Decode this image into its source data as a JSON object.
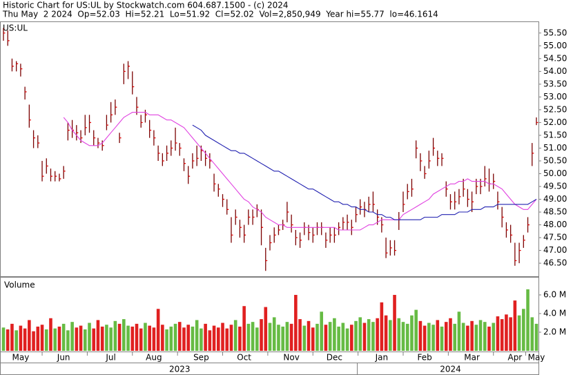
{
  "chart_data": {
    "type": "ohlc",
    "title": "Historic Chart for US:UL by Stockwatch.com 604.687.1500 - (c) 2024",
    "subtitle": "Thu May  2 2024  Op=52.03  Hi=52.21  Lo=51.92  Cl=52.02  Vol=2,850,949  Year hi=55.77  lo=46.1614",
    "symbol": "US:UL",
    "categories": [
      null,
      null,
      null,
      null,
      "May",
      null,
      null,
      null,
      null,
      null,
      null,
      null,
      null,
      null,
      "Jun",
      null,
      null,
      null,
      null,
      null,
      null,
      null,
      null,
      null,
      null,
      "Jul",
      null,
      null,
      null,
      null,
      null,
      null,
      null,
      null,
      null,
      "Aug",
      null,
      null,
      null,
      null,
      null,
      null,
      null,
      null,
      null,
      null,
      "Sep",
      null,
      null,
      null,
      null,
      null,
      null,
      null,
      null,
      null,
      "Oct",
      null,
      null,
      null,
      null,
      null,
      null,
      null,
      null,
      null,
      null,
      "Nov",
      null,
      null,
      null,
      null,
      null,
      null,
      null,
      null,
      null,
      "Dec",
      null,
      null,
      null,
      null,
      null,
      null,
      null,
      null,
      null,
      null,
      "Jan",
      null,
      null,
      null,
      null,
      null,
      null,
      null,
      null,
      null,
      "Feb",
      null,
      null,
      null,
      null,
      null,
      null,
      null,
      null,
      null,
      null,
      "Mar",
      null,
      null,
      null,
      null,
      null,
      null,
      null,
      null,
      null,
      "Apr",
      null,
      null,
      null,
      null,
      "May"
    ],
    "year_labels": [
      null,
      null,
      null,
      null,
      null,
      null,
      null,
      null,
      null,
      null,
      null,
      null,
      null,
      null,
      null,
      null,
      null,
      null,
      null,
      null,
      null,
      null,
      null,
      null,
      null,
      null,
      null,
      null,
      null,
      null,
      null,
      null,
      null,
      null,
      null,
      null,
      null,
      null,
      null,
      null,
      null,
      "2023",
      null,
      null,
      null,
      null,
      null,
      null,
      null,
      null,
      null,
      null,
      null,
      null,
      null,
      null,
      null,
      null,
      null,
      null,
      null,
      null,
      null,
      null,
      null,
      null,
      null,
      null,
      null,
      null,
      null,
      null,
      null,
      null,
      null,
      null,
      null,
      null,
      null,
      null,
      null,
      null,
      null,
      null,
      null,
      null,
      null,
      null,
      null,
      null,
      null,
      null,
      null,
      null,
      null,
      null,
      null,
      null,
      null,
      null,
      null,
      null,
      null,
      null,
      "2024",
      null,
      null,
      null,
      null,
      null,
      null,
      null,
      null,
      null,
      null,
      null,
      null,
      null,
      null,
      null,
      null,
      null,
      null,
      null,
      null
    ],
    "high": [
      55.7,
      55.6,
      54.5,
      54.4,
      54.3,
      53.4,
      52.7,
      51.7,
      51.5,
      50.5,
      50.6,
      50.2,
      50.1,
      50.0,
      50.3,
      52.0,
      52.1,
      51.9,
      51.7,
      52.3,
      52.3,
      51.7,
      51.4,
      51.3,
      52.3,
      52.8,
      52.9,
      51.6,
      54.3,
      54.4,
      54.0,
      53.0,
      52.3,
      52.5,
      52.1,
      51.7,
      51.1,
      50.8,
      51.1,
      51.3,
      51.8,
      51.2,
      50.6,
      50.3,
      50.8,
      51.1,
      51.1,
      50.9,
      50.8,
      50.0,
      49.6,
      49.2,
      49.0,
      48.3,
      48.6,
      48.2,
      48.0,
      48.6,
      48.6,
      48.8,
      48.6,
      47.1,
      47.6,
      47.9,
      48.0,
      48.2,
      48.9,
      48.4,
      47.8,
      47.7,
      48.1,
      48.0,
      47.9,
      48.1,
      48.1,
      47.7,
      47.9,
      47.9,
      48.1,
      48.3,
      48.4,
      48.2,
      48.7,
      49.0,
      48.9,
      49.1,
      49.3,
      48.6,
      48.3,
      47.5,
      47.4,
      47.4,
      48.5,
      49.3,
      49.6,
      49.8,
      51.3,
      50.8,
      50.3,
      50.9,
      51.4,
      50.9,
      50.8,
      49.7,
      49.2,
      49.3,
      49.4,
      49.8,
      49.4,
      49.3,
      49.8,
      49.8,
      50.3,
      50.2,
      50.0,
      49.3,
      48.7,
      48.1,
      48.0,
      47.3,
      47.3,
      47.6,
      48.3,
      51.2,
      52.2
    ],
    "low": [
      55.2,
      55.0,
      54.0,
      54.0,
      53.8,
      52.9,
      51.8,
      51.0,
      51.0,
      49.7,
      50.0,
      49.7,
      49.7,
      49.7,
      49.8,
      51.3,
      51.4,
      51.3,
      51.2,
      51.5,
      51.6,
      51.1,
      51.0,
      50.9,
      51.7,
      52.0,
      52.3,
      51.2,
      53.5,
      53.7,
      53.1,
      52.3,
      51.8,
      52.0,
      51.4,
      51.1,
      50.5,
      50.3,
      50.5,
      50.7,
      50.9,
      50.7,
      50.1,
      49.6,
      50.2,
      50.3,
      50.5,
      50.3,
      50.2,
      49.3,
      49.1,
      48.7,
      48.4,
      47.3,
      48.0,
      47.5,
      47.3,
      48.0,
      48.0,
      48.3,
      47.2,
      46.2,
      47.0,
      47.3,
      47.6,
      47.8,
      48.1,
      47.7,
      47.2,
      47.1,
      47.6,
      47.4,
      47.3,
      47.6,
      47.6,
      47.1,
      47.3,
      47.3,
      47.6,
      47.8,
      47.8,
      47.6,
      48.1,
      48.4,
      48.3,
      48.5,
      48.5,
      48.0,
      47.7,
      46.7,
      46.8,
      46.8,
      47.8,
      48.5,
      49.0,
      49.1,
      50.6,
      50.1,
      49.8,
      50.2,
      50.7,
      50.3,
      50.3,
      49.1,
      48.6,
      48.6,
      48.8,
      49.1,
      48.7,
      48.5,
      49.2,
      49.2,
      49.5,
      49.3,
      49.4,
      48.6,
      47.9,
      47.5,
      47.3,
      46.4,
      46.5,
      47.1,
      47.7,
      50.3,
      51.9
    ],
    "close": [
      55.5,
      55.2,
      54.2,
      54.3,
      54.1,
      53.2,
      52.1,
      51.4,
      51.2,
      49.9,
      50.3,
      49.9,
      49.9,
      49.8,
      50.1,
      51.7,
      51.7,
      51.6,
      51.4,
      51.8,
      52.0,
      51.4,
      51.2,
      51.1,
      51.9,
      52.3,
      52.6,
      51.4,
      54.0,
      54.2,
      53.4,
      52.6,
      52.0,
      52.3,
      51.7,
      51.4,
      50.8,
      50.5,
      50.8,
      51.0,
      51.2,
      51.0,
      50.4,
      49.9,
      50.5,
      50.6,
      50.9,
      50.6,
      50.5,
      49.6,
      49.4,
      49.0,
      48.6,
      47.6,
      48.3,
      47.9,
      47.6,
      48.3,
      48.3,
      48.6,
      47.9,
      46.6,
      47.3,
      47.6,
      47.8,
      48.0,
      48.5,
      48.0,
      47.5,
      47.4,
      47.9,
      47.7,
      47.6,
      47.9,
      47.9,
      47.4,
      47.6,
      47.6,
      47.9,
      48.1,
      48.1,
      47.9,
      48.4,
      48.7,
      48.6,
      48.8,
      48.8,
      48.3,
      48.0,
      46.9,
      47.1,
      47.0,
      48.2,
      48.8,
      49.3,
      49.4,
      51.0,
      50.5,
      50.0,
      50.5,
      51.0,
      50.6,
      50.6,
      49.4,
      48.9,
      48.9,
      49.1,
      49.4,
      49.0,
      48.9,
      49.5,
      49.5,
      49.8,
      49.6,
      49.7,
      48.9,
      48.3,
      47.8,
      47.6,
      46.6,
      47.0,
      47.4,
      48.0,
      50.8,
      52.0
    ],
    "bar_color": "#7a0000",
    "close_color": "#e00000",
    "ylim": [
      45.99,
      55.9
    ],
    "yticks": [
      {
        "value": 46.5,
        "label": "46.50"
      },
      {
        "value": 47,
        "label": "47.00"
      },
      {
        "value": 47.5,
        "label": "47.50"
      },
      {
        "value": 48,
        "label": "48.00"
      },
      {
        "value": 48.5,
        "label": "48.50"
      },
      {
        "value": 49,
        "label": "49.00"
      },
      {
        "value": 49.5,
        "label": "49.50"
      },
      {
        "value": 50,
        "label": "50.00"
      },
      {
        "value": 50.5,
        "label": "50.50"
      },
      {
        "value": 51,
        "label": "51.00"
      },
      {
        "value": 51.5,
        "label": "51.50"
      },
      {
        "value": 52,
        "label": "52.00"
      },
      {
        "value": 52.5,
        "label": "52.50"
      },
      {
        "value": 53,
        "label": "53.00"
      },
      {
        "value": 53.5,
        "label": "53.50"
      },
      {
        "value": 54,
        "label": "54.00"
      },
      {
        "value": 54.5,
        "label": "54.50"
      },
      {
        "value": 55,
        "label": "55.00"
      },
      {
        "value": 55.5,
        "label": "55.50"
      }
    ],
    "moving_averages": [
      {
        "color": "#e040e0",
        "values": [
          null,
          null,
          null,
          null,
          null,
          null,
          null,
          null,
          null,
          null,
          null,
          null,
          null,
          null,
          52.2,
          52.0,
          51.7,
          51.5,
          51.3,
          51.2,
          51.1,
          51.1,
          51.1,
          51.2,
          51.4,
          51.6,
          51.8,
          52.0,
          52.2,
          52.3,
          52.4,
          52.4,
          52.4,
          52.4,
          52.3,
          52.3,
          52.3,
          52.2,
          52.1,
          52.1,
          52.0,
          51.9,
          51.8,
          51.6,
          51.4,
          51.2,
          51.0,
          50.8,
          50.6,
          50.4,
          50.2,
          50.0,
          49.8,
          49.6,
          49.4,
          49.2,
          49.0,
          48.9,
          48.7,
          48.6,
          48.5,
          48.3,
          48.2,
          48.1,
          48.0,
          48.0,
          47.9,
          47.9,
          47.9,
          47.9,
          47.9,
          47.9,
          47.9,
          47.9,
          47.9,
          47.9,
          47.9,
          47.9,
          47.8,
          47.8,
          47.8,
          47.8,
          47.8,
          47.8,
          47.9,
          48.0,
          48.0,
          48.1,
          48.2,
          48.2,
          48.2,
          48.2,
          48.2,
          48.4,
          48.5,
          48.6,
          48.7,
          48.8,
          48.9,
          49.0,
          49.2,
          49.3,
          49.4,
          49.5,
          49.6,
          49.6,
          49.7,
          49.7,
          49.8,
          49.7,
          49.7,
          49.7,
          49.7,
          49.6,
          49.6,
          49.5,
          49.4,
          49.2,
          49.0,
          48.8,
          48.7,
          48.6,
          48.6,
          48.8,
          49.0
        ]
      },
      {
        "color": "#2020b0",
        "values": [
          null,
          null,
          null,
          null,
          null,
          null,
          null,
          null,
          null,
          null,
          null,
          null,
          null,
          null,
          null,
          null,
          null,
          null,
          null,
          null,
          null,
          null,
          null,
          null,
          null,
          null,
          null,
          null,
          null,
          null,
          null,
          null,
          null,
          null,
          null,
          null,
          null,
          null,
          null,
          null,
          null,
          null,
          null,
          null,
          51.9,
          51.8,
          51.7,
          51.5,
          51.4,
          51.3,
          51.2,
          51.1,
          51.0,
          50.9,
          50.9,
          50.8,
          50.8,
          50.7,
          50.6,
          50.5,
          50.4,
          50.3,
          50.2,
          50.1,
          50.1,
          50.0,
          49.9,
          49.8,
          49.7,
          49.6,
          49.5,
          49.4,
          49.4,
          49.3,
          49.2,
          49.1,
          49.0,
          48.9,
          48.9,
          48.8,
          48.8,
          48.7,
          48.7,
          48.6,
          48.6,
          48.5,
          48.5,
          48.4,
          48.4,
          48.3,
          48.3,
          48.2,
          48.2,
          48.2,
          48.2,
          48.2,
          48.2,
          48.2,
          48.3,
          48.3,
          48.3,
          48.3,
          48.4,
          48.4,
          48.4,
          48.4,
          48.5,
          48.5,
          48.5,
          48.6,
          48.6,
          48.6,
          48.7,
          48.7,
          48.7,
          48.8,
          48.8,
          48.8,
          48.8,
          48.8,
          48.8,
          48.8,
          48.8,
          48.9,
          49.0
        ]
      }
    ],
    "volume": {
      "label": "Volume",
      "up_color": "#66bb44",
      "down_color": "#e02020",
      "values": [
        2.5,
        2.3,
        2.9,
        2.2,
        2.7,
        2.4,
        3.3,
        2.1,
        2.6,
        2.8,
        2.3,
        3.5,
        2.4,
        2.6,
        2.9,
        2.2,
        3.1,
        2.5,
        2.7,
        2.3,
        3.0,
        2.4,
        3.3,
        2.6,
        2.8,
        2.5,
        3.2,
        2.9,
        3.4,
        2.7,
        2.6,
        2.9,
        2.4,
        3.0,
        2.7,
        2.5,
        4.5,
        2.8,
        2.3,
        2.6,
        2.9,
        3.1,
        2.5,
        2.8,
        2.6,
        3.3,
        2.4,
        2.9,
        2.2,
        2.7,
        2.5,
        3.0,
        2.4,
        2.8,
        3.3,
        2.6,
        4.8,
        2.9,
        3.1,
        2.5,
        3.4,
        4.7,
        3.0,
        3.6,
        2.8,
        2.6,
        3.1,
        2.9,
        6.0,
        3.4,
        2.7,
        3.2,
        2.5,
        2.9,
        4.2,
        2.8,
        3.1,
        3.5,
        2.6,
        3.0,
        2.4,
        2.8,
        3.2,
        3.6,
        3.0,
        3.4,
        3.1,
        3.5,
        5.2,
        3.8,
        3.3,
        6.0,
        3.5,
        3.1,
        2.9,
        3.8,
        4.4,
        3.2,
        2.7,
        3.0,
        2.8,
        3.3,
        2.6,
        3.1,
        3.5,
        2.9,
        4.2,
        3.0,
        2.7,
        3.2,
        2.8,
        3.3,
        3.1,
        2.6,
        3.0,
        3.7,
        3.4,
        3.9,
        3.6,
        5.4,
        3.8,
        4.5,
        6.6,
        3.6,
        2.9
      ],
      "ylim": [
        0,
        7.78
      ],
      "yticks": [
        {
          "value": 2,
          "label": "2.0 M"
        },
        {
          "value": 4,
          "label": "4.0 M"
        },
        {
          "value": 6,
          "label": "6.0 M"
        }
      ]
    }
  }
}
